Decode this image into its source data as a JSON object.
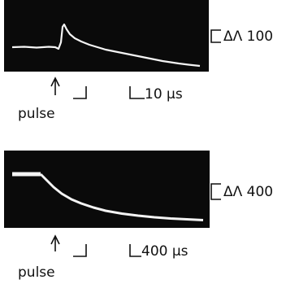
{
  "panels": [
    {
      "scale_label": "ΔΛ 100",
      "time_label": "10 μs",
      "pulse_label": "pulse"
    },
    {
      "scale_label": "ΔΛ 400",
      "time_label": "400 μs",
      "pulse_label": "pulse"
    }
  ]
}
